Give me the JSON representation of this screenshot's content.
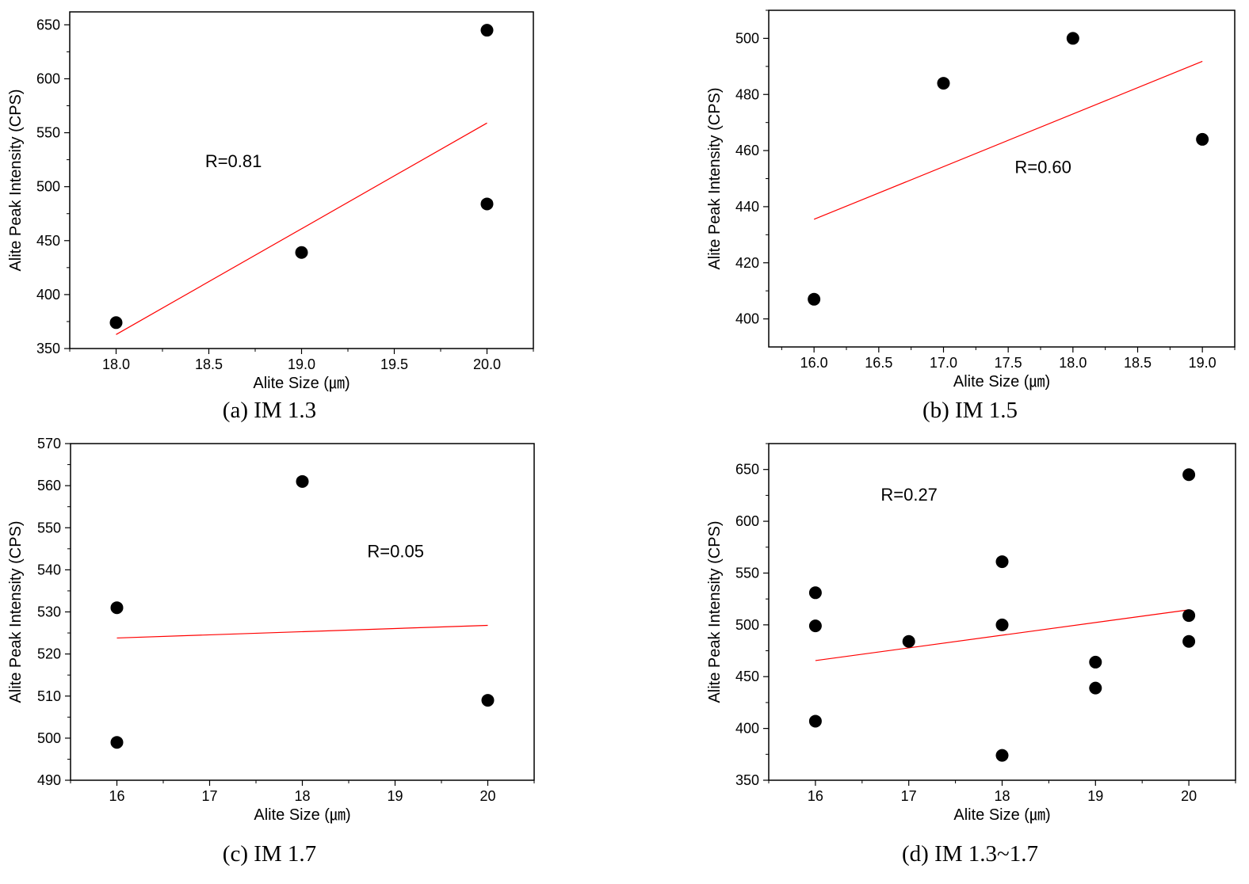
{
  "chart_data": [
    {
      "type": "scatter",
      "caption": "(a) IM 1.3",
      "xlabel": "Alite Size (㎛)",
      "ylabel": "Alite Peak Intensity (CPS)",
      "xlim": [
        17.75,
        20.25
      ],
      "ylim": [
        350,
        662
      ],
      "xticks": [
        18.0,
        18.5,
        19.0,
        19.5,
        20.0
      ],
      "xtick_labels": [
        "18.0",
        "18.5",
        "19.0",
        "19.5",
        "20.0"
      ],
      "yticks": [
        350,
        400,
        450,
        500,
        550,
        600,
        650
      ],
      "ytick_labels": [
        "350",
        "400",
        "450",
        "500",
        "550",
        "600",
        "650"
      ],
      "points": [
        {
          "x": 18.0,
          "y": 374
        },
        {
          "x": 19.0,
          "y": 439
        },
        {
          "x": 20.0,
          "y": 484
        },
        {
          "x": 20.0,
          "y": 645
        }
      ],
      "fit_line": {
        "x": [
          18.0,
          20.0
        ],
        "y": [
          363,
          559
        ]
      },
      "annotation": {
        "text": "R=0.81",
        "x": 18.48,
        "y": 518
      },
      "grid": false,
      "colors": {
        "points": "#000000",
        "fit": "#ff0000"
      }
    },
    {
      "type": "scatter",
      "caption": "(b) IM 1.5",
      "xlabel": "Alite Size (㎛)",
      "ylabel": "Alite Peak Intensity (CPS)",
      "xlim": [
        15.65,
        19.25
      ],
      "ylim": [
        390,
        510
      ],
      "xticks": [
        16.0,
        16.5,
        17.0,
        17.5,
        18.0,
        18.5,
        19.0
      ],
      "xtick_labels": [
        "16.0",
        "16.5",
        "17.0",
        "17.5",
        "18.0",
        "18.5",
        "19.0"
      ],
      "yticks": [
        400,
        420,
        440,
        460,
        480,
        500
      ],
      "ytick_labels": [
        "400",
        "420",
        "440",
        "460",
        "480",
        "500"
      ],
      "points": [
        {
          "x": 16.0,
          "y": 407
        },
        {
          "x": 17.0,
          "y": 484
        },
        {
          "x": 18.0,
          "y": 500
        },
        {
          "x": 19.0,
          "y": 464
        }
      ],
      "fit_line": {
        "x": [
          16.0,
          19.0
        ],
        "y": [
          435.5,
          491.8
        ]
      },
      "annotation": {
        "text": "R=0.60",
        "x": 17.55,
        "y": 452
      },
      "grid": false,
      "colors": {
        "points": "#000000",
        "fit": "#ff0000"
      }
    },
    {
      "type": "scatter",
      "caption": "(c) IM 1.7",
      "xlabel": "Alite Size (㎛)",
      "ylabel": "Alite Peak Intensity (CPS)",
      "xlim": [
        15.5,
        20.5
      ],
      "ylim": [
        490,
        570
      ],
      "xticks": [
        16,
        17,
        18,
        19,
        20
      ],
      "xtick_labels": [
        "16",
        "17",
        "18",
        "19",
        "20"
      ],
      "yticks": [
        490,
        500,
        510,
        520,
        530,
        540,
        550,
        560,
        570
      ],
      "ytick_labels": [
        "490",
        "500",
        "510",
        "520",
        "530",
        "540",
        "550",
        "560",
        "570"
      ],
      "points": [
        {
          "x": 16,
          "y": 499
        },
        {
          "x": 16,
          "y": 531
        },
        {
          "x": 18,
          "y": 561
        },
        {
          "x": 20,
          "y": 509
        }
      ],
      "fit_line": {
        "x": [
          16,
          20
        ],
        "y": [
          523.8,
          526.8
        ]
      },
      "annotation": {
        "text": "R=0.05",
        "x": 18.7,
        "y": 543
      },
      "grid": false,
      "colors": {
        "points": "#000000",
        "fit": "#ff0000"
      }
    },
    {
      "type": "scatter",
      "caption": "(d) IM 1.3~1.7",
      "xlabel": "Alite Size (㎛)",
      "ylabel": "Alite Peak Intensity (CPS)",
      "xlim": [
        15.5,
        20.5
      ],
      "ylim": [
        350,
        675
      ],
      "xticks": [
        16,
        17,
        18,
        19,
        20
      ],
      "xtick_labels": [
        "16",
        "17",
        "18",
        "19",
        "20"
      ],
      "yticks": [
        350,
        400,
        450,
        500,
        550,
        600,
        650
      ],
      "ytick_labels": [
        "350",
        "400",
        "450",
        "500",
        "550",
        "600",
        "650"
      ],
      "points": [
        {
          "x": 16,
          "y": 407
        },
        {
          "x": 16,
          "y": 499
        },
        {
          "x": 16,
          "y": 531
        },
        {
          "x": 17,
          "y": 484
        },
        {
          "x": 18,
          "y": 374
        },
        {
          "x": 18,
          "y": 500
        },
        {
          "x": 18,
          "y": 561
        },
        {
          "x": 19,
          "y": 439
        },
        {
          "x": 19,
          "y": 464
        },
        {
          "x": 20,
          "y": 484
        },
        {
          "x": 20,
          "y": 509
        },
        {
          "x": 20,
          "y": 645
        }
      ],
      "fit_line": {
        "x": [
          16,
          20
        ],
        "y": [
          465.5,
          514.5
        ]
      },
      "annotation": {
        "text": "R=0.27",
        "x": 16.7,
        "y": 620
      },
      "grid": false,
      "colors": {
        "points": "#000000",
        "fit": "#ff0000"
      }
    }
  ]
}
